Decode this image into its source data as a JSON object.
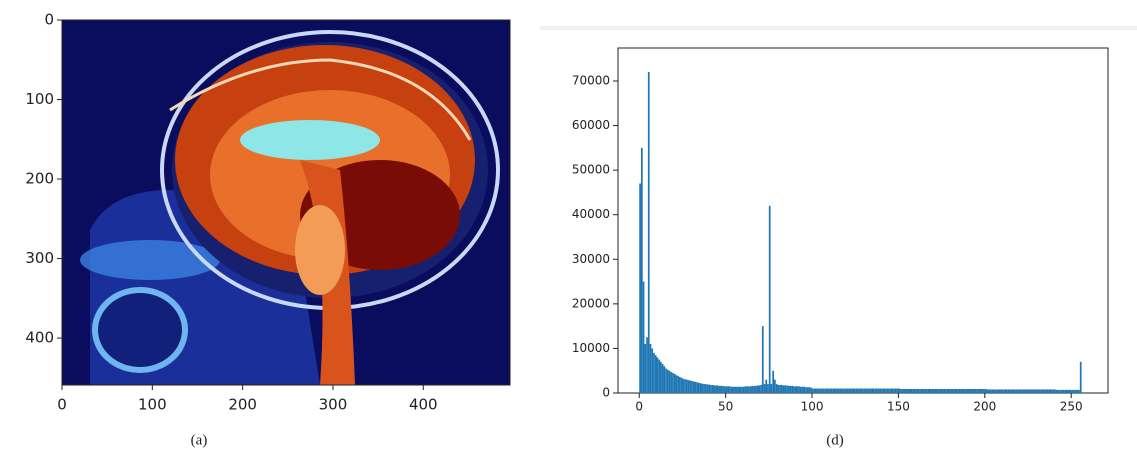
{
  "chart_data": [
    {
      "type": "image",
      "caption": "(a)",
      "xlim": [
        0,
        496
      ],
      "xticks": [
        0,
        100,
        200,
        300,
        400
      ],
      "ylim": [
        459,
        0
      ],
      "yticks": [
        0,
        100,
        200,
        300,
        400
      ]
    },
    {
      "type": "histogram",
      "caption": "(d)",
      "color": "#1f77b4",
      "xlim": [
        -12.3,
        271.3
      ],
      "xticks": [
        0,
        50,
        100,
        150,
        200,
        250
      ],
      "ylim": [
        0,
        77400
      ],
      "yticks": [
        0,
        10000,
        20000,
        30000,
        40000,
        50000,
        60000,
        70000
      ],
      "bins": [
        0,
        1,
        2,
        3,
        4,
        5,
        6,
        7,
        8,
        9,
        10,
        11,
        12,
        13,
        14,
        15,
        16,
        17,
        18,
        19,
        20,
        21,
        22,
        23,
        24,
        25,
        26,
        27,
        28,
        29,
        30,
        31,
        32,
        33,
        34,
        35,
        36,
        37,
        38,
        39,
        40,
        41,
        42,
        43,
        44,
        45,
        46,
        47,
        48,
        49,
        50,
        51,
        52,
        53,
        54,
        55,
        56,
        57,
        58,
        59,
        60,
        61,
        62,
        63,
        64,
        65,
        66,
        67,
        68,
        69,
        70,
        71,
        72,
        73,
        74,
        75,
        76,
        77,
        78,
        79,
        80,
        81,
        82,
        83,
        84,
        85,
        86,
        87,
        88,
        89,
        90,
        91,
        92,
        93,
        94,
        95,
        96,
        97,
        98,
        99,
        100,
        101,
        102,
        103,
        104,
        105,
        106,
        107,
        108,
        109,
        110,
        111,
        112,
        113,
        114,
        115,
        116,
        117,
        118,
        119,
        120,
        121,
        122,
        123,
        124,
        125,
        126,
        127,
        128,
        129,
        130,
        131,
        132,
        133,
        134,
        135,
        136,
        137,
        138,
        139,
        140,
        141,
        142,
        143,
        144,
        145,
        146,
        147,
        148,
        149,
        150,
        151,
        152,
        153,
        154,
        155,
        156,
        157,
        158,
        159,
        160,
        161,
        162,
        163,
        164,
        165,
        166,
        167,
        168,
        169,
        170,
        171,
        172,
        173,
        174,
        175,
        176,
        177,
        178,
        179,
        180,
        181,
        182,
        183,
        184,
        185,
        186,
        187,
        188,
        189,
        190,
        191,
        192,
        193,
        194,
        195,
        196,
        197,
        198,
        199,
        200,
        201,
        202,
        203,
        204,
        205,
        206,
        207,
        208,
        209,
        210,
        211,
        212,
        213,
        214,
        215,
        216,
        217,
        218,
        219,
        220,
        221,
        222,
        223,
        224,
        225,
        226,
        227,
        228,
        229,
        230,
        231,
        232,
        233,
        234,
        235,
        236,
        237,
        238,
        239,
        240,
        241,
        242,
        243,
        244,
        245,
        246,
        247,
        248,
        249,
        250,
        251,
        252,
        253,
        254,
        255,
        256
      ],
      "values": [
        47000,
        55000,
        25000,
        11000,
        12500,
        72000,
        11000,
        10000,
        9000,
        8500,
        8000,
        7500,
        7000,
        6500,
        6000,
        5500,
        5200,
        5000,
        4700,
        4500,
        4300,
        4000,
        3800,
        3600,
        3400,
        3200,
        3100,
        3000,
        2900,
        2800,
        2700,
        2600,
        2500,
        2400,
        2300,
        2200,
        2100,
        2000,
        2000,
        1900,
        1900,
        1800,
        1800,
        1700,
        1700,
        1700,
        1600,
        1600,
        1600,
        1500,
        1500,
        1500,
        1500,
        1400,
        1400,
        1400,
        1400,
        1400,
        1400,
        1400,
        1400,
        1500,
        1500,
        1500,
        1500,
        1600,
        1600,
        1600,
        1700,
        1700,
        1800,
        15000,
        2000,
        3000,
        2000,
        42000,
        2000,
        5000,
        3000,
        2000,
        1800,
        1800,
        1800,
        1700,
        1700,
        1700,
        1600,
        1600,
        1600,
        1500,
        1500,
        1500,
        1500,
        1400,
        1400,
        1400,
        1300,
        1300,
        1300,
        1200,
        1000,
        1000,
        1000,
        1000,
        1000,
        1000,
        1000,
        1000,
        1000,
        1000,
        1000,
        1000,
        1000,
        1000,
        1000,
        1000,
        1000,
        1000,
        1000,
        1000,
        1000,
        1000,
        1000,
        1000,
        1000,
        1000,
        1000,
        1000,
        1000,
        1000,
        1000,
        1000,
        1000,
        1000,
        1000,
        1000,
        1000,
        1000,
        1000,
        1000,
        1000,
        1000,
        1000,
        1000,
        1000,
        1000,
        1000,
        1000,
        1000,
        1000,
        1000,
        900,
        900,
        900,
        900,
        900,
        900,
        900,
        900,
        900,
        900,
        900,
        900,
        900,
        900,
        900,
        900,
        900,
        900,
        900,
        900,
        900,
        900,
        900,
        900,
        900,
        900,
        900,
        900,
        900,
        900,
        900,
        900,
        900,
        900,
        900,
        900,
        900,
        900,
        900,
        900,
        900,
        900,
        900,
        900,
        900,
        900,
        900,
        900,
        900,
        900,
        800,
        800,
        800,
        800,
        800,
        800,
        800,
        800,
        800,
        800,
        800,
        800,
        800,
        800,
        800,
        800,
        800,
        800,
        800,
        800,
        800,
        800,
        800,
        800,
        800,
        800,
        800,
        800,
        800,
        800,
        800,
        800,
        800,
        800,
        800,
        800,
        800,
        800,
        800,
        800,
        700,
        700,
        700,
        700,
        700,
        700,
        700,
        700,
        700,
        700,
        700,
        700,
        700,
        700,
        7000
      ]
    }
  ]
}
